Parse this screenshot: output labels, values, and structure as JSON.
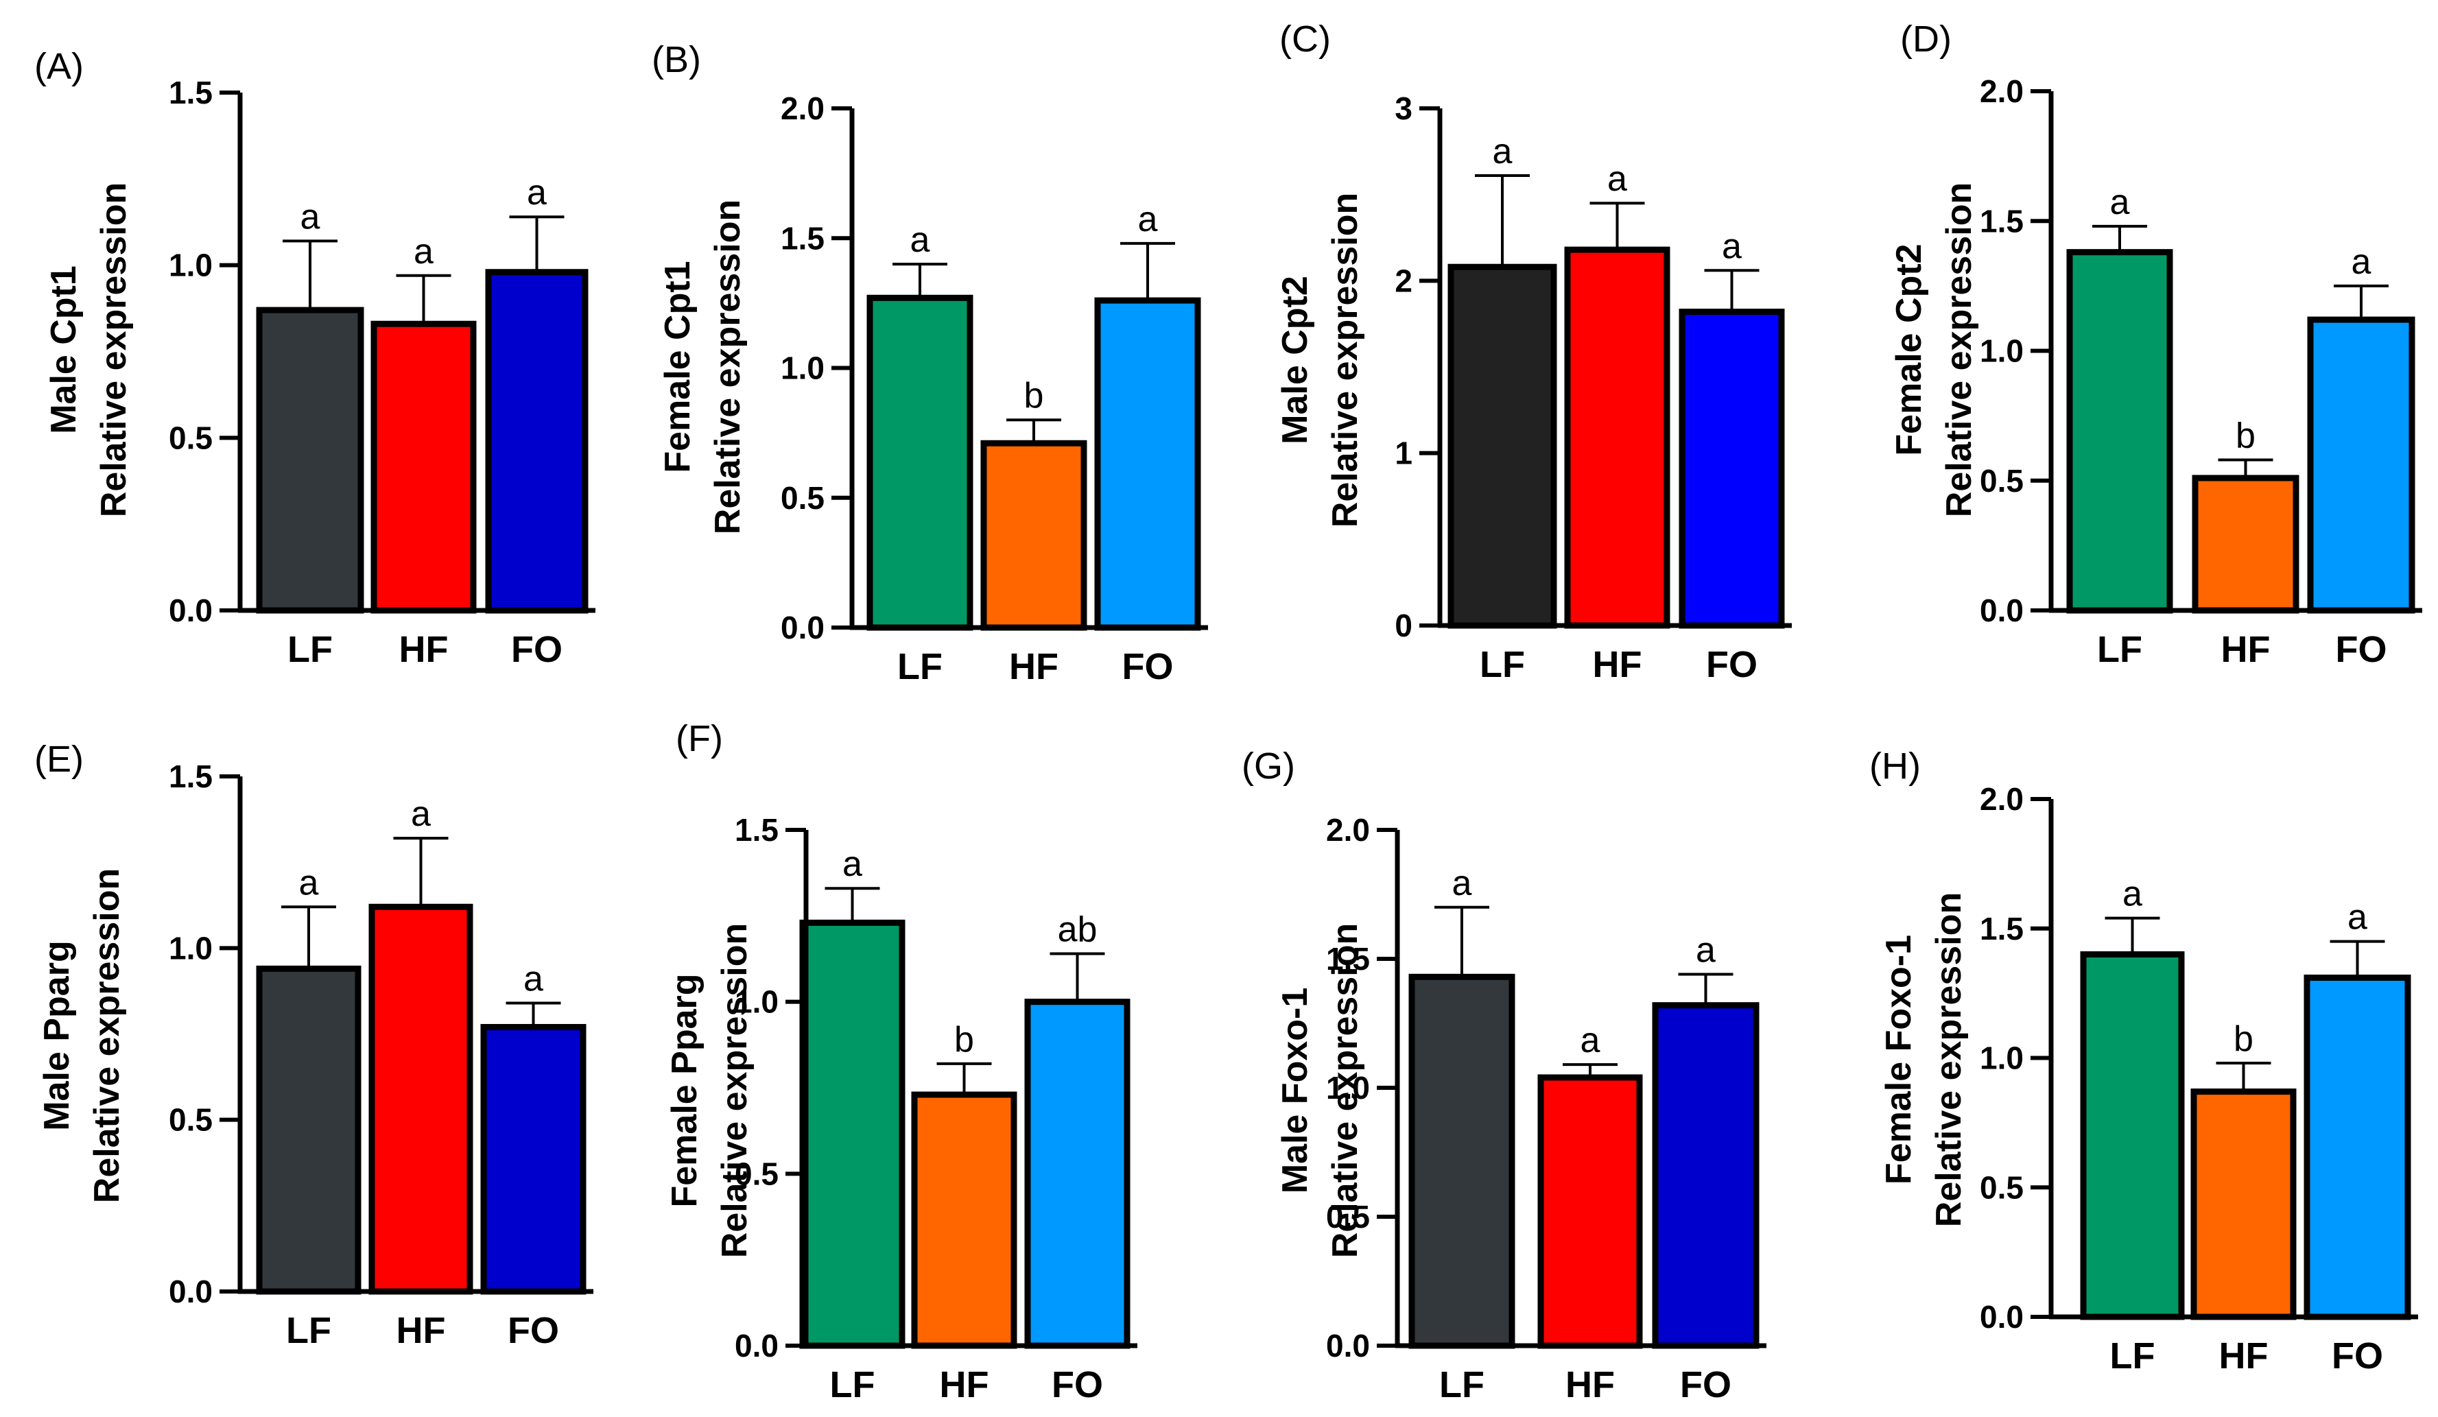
{
  "figure": {
    "categories": [
      "LF",
      "HF",
      "FO"
    ]
  },
  "chart_data": [
    {
      "panel": "(A)",
      "type": "bar",
      "ylabel_line1": "Male Cpt1",
      "ylabel_line2": "Relative expression",
      "categories": [
        "LF",
        "HF",
        "FO"
      ],
      "values": [
        0.87,
        0.83,
        0.98
      ],
      "errors": [
        0.2,
        0.14,
        0.16
      ],
      "letters": [
        "a",
        "a",
        "a"
      ],
      "colors": [
        "#33383d",
        "#ff0000",
        "#0000cc"
      ],
      "ylim": [
        0,
        1.5
      ],
      "yticks": [
        0.0,
        0.5,
        1.0,
        1.5
      ],
      "tick_labels": [
        "0.0",
        "0.5",
        "1.0",
        "1.5"
      ]
    },
    {
      "panel": "(B)",
      "type": "bar",
      "ylabel_line1": "Female Cpt1",
      "ylabel_line2": "Relative expression",
      "categories": [
        "LF",
        "HF",
        "FO"
      ],
      "values": [
        1.27,
        0.71,
        1.26
      ],
      "errors": [
        0.13,
        0.09,
        0.22
      ],
      "letters": [
        "a",
        "b",
        "a"
      ],
      "colors": [
        "#009966",
        "#ff6600",
        "#0099ff"
      ],
      "ylim": [
        0,
        2.0
      ],
      "yticks": [
        0.0,
        0.5,
        1.0,
        1.5,
        2.0
      ],
      "tick_labels": [
        "0.0",
        "0.5",
        "1.0",
        "1.5",
        "2.0"
      ]
    },
    {
      "panel": "(C)",
      "type": "bar",
      "ylabel_line1": "Male Cpt2",
      "ylabel_line2": "Relative expression",
      "categories": [
        "LF",
        "HF",
        "FO"
      ],
      "values": [
        2.08,
        2.18,
        1.82
      ],
      "errors": [
        0.53,
        0.27,
        0.24
      ],
      "letters": [
        "a",
        "a",
        "a"
      ],
      "colors": [
        "#222222",
        "#ff0000",
        "#0000ff"
      ],
      "ylim": [
        0,
        3
      ],
      "yticks": [
        0,
        1,
        2,
        3
      ],
      "tick_labels": [
        "0",
        "1",
        "2",
        "3"
      ]
    },
    {
      "panel": "(D)",
      "type": "bar",
      "ylabel_line1": "Female Cpt2",
      "ylabel_line2": "Relative expression",
      "categories": [
        "LF",
        "HF",
        "FO"
      ],
      "values": [
        1.38,
        0.51,
        1.12
      ],
      "errors": [
        0.1,
        0.07,
        0.13
      ],
      "letters": [
        "a",
        "b",
        "a"
      ],
      "colors": [
        "#009966",
        "#ff6600",
        "#0099ff"
      ],
      "ylim": [
        0,
        2.0
      ],
      "yticks": [
        0.0,
        0.5,
        1.0,
        1.5,
        2.0
      ],
      "tick_labels": [
        "0.0",
        "0.5",
        "1.0",
        "1.5",
        "2.0"
      ]
    },
    {
      "panel": "(E)",
      "type": "bar",
      "ylabel_line1": "Male Pparg",
      "ylabel_line2": "Relative expression",
      "categories": [
        "LF",
        "HF",
        "FO"
      ],
      "values": [
        0.94,
        1.12,
        0.77
      ],
      "errors": [
        0.18,
        0.2,
        0.07
      ],
      "letters": [
        "a",
        "a",
        "a"
      ],
      "colors": [
        "#33383d",
        "#ff0000",
        "#0000cc"
      ],
      "ylim": [
        0,
        1.5
      ],
      "yticks": [
        0.0,
        0.5,
        1.0,
        1.5
      ],
      "tick_labels": [
        "0.0",
        "0.5",
        "1.0",
        "1.5"
      ]
    },
    {
      "panel": "(F)",
      "type": "bar",
      "ylabel_line1": "Female Pparg",
      "ylabel_line2": "Relative expression",
      "categories": [
        "LF",
        "HF",
        "FO"
      ],
      "values": [
        1.23,
        0.73,
        1.0
      ],
      "errors": [
        0.1,
        0.09,
        0.14
      ],
      "letters": [
        "a",
        "b",
        "ab"
      ],
      "colors": [
        "#009966",
        "#ff6600",
        "#0099ff"
      ],
      "ylim": [
        0,
        1.5
      ],
      "yticks": [
        0.0,
        0.5,
        1.0,
        1.5
      ],
      "tick_labels": [
        "0.0",
        "0.5",
        "1.0",
        "1.5"
      ]
    },
    {
      "panel": "(G)",
      "type": "bar",
      "ylabel_line1": "Male Foxo-1",
      "ylabel_line2": "Relative expression",
      "categories": [
        "LF",
        "HF",
        "FO"
      ],
      "values": [
        1.43,
        1.04,
        1.32
      ],
      "errors": [
        0.27,
        0.05,
        0.12
      ],
      "letters": [
        "a",
        "a",
        "a"
      ],
      "colors": [
        "#33383d",
        "#ff0000",
        "#0000cc"
      ],
      "ylim": [
        0,
        2.0
      ],
      "yticks": [
        0.0,
        0.5,
        1.0,
        1.5,
        2.0
      ],
      "tick_labels": [
        "0.0",
        "0.5",
        "1.0",
        "1.5",
        "2.0"
      ]
    },
    {
      "panel": "(H)",
      "type": "bar",
      "ylabel_line1": "Female Foxo-1",
      "ylabel_line2": "Relative expression",
      "categories": [
        "LF",
        "HF",
        "FO"
      ],
      "values": [
        1.4,
        0.87,
        1.31
      ],
      "errors": [
        0.14,
        0.11,
        0.14
      ],
      "letters": [
        "a",
        "b",
        "a"
      ],
      "colors": [
        "#009966",
        "#ff6600",
        "#0099ff"
      ],
      "ylim": [
        0,
        2.0
      ],
      "yticks": [
        0.0,
        0.5,
        1.0,
        1.5,
        2.0
      ],
      "tick_labels": [
        "0.0",
        "0.5",
        "1.0",
        "1.5",
        "2.0"
      ]
    }
  ]
}
